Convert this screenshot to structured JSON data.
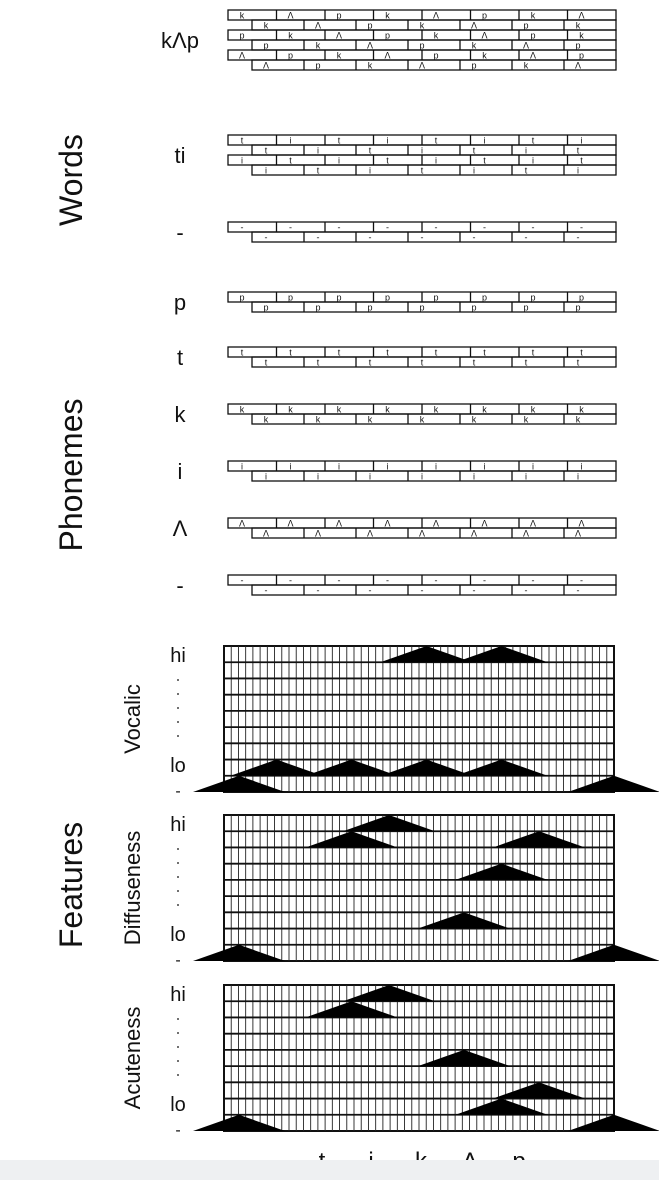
{
  "sections": {
    "words": "Words",
    "phonemes": "Phonemes",
    "features": "Features"
  },
  "words": [
    {
      "label": "kΛp",
      "rows": [
        [
          "k",
          "Λ",
          "p",
          "k",
          "Λ",
          "p",
          "k",
          "Λ"
        ],
        [
          "k",
          "Λ",
          "p",
          "k",
          "Λ",
          "p",
          "k"
        ],
        [
          "p",
          "k",
          "Λ",
          "p",
          "k",
          "Λ",
          "p",
          "k"
        ],
        [
          "p",
          "k",
          "Λ",
          "p",
          "k",
          "Λ",
          "p"
        ],
        [
          "Λ",
          "p",
          "k",
          "Λ",
          "p",
          "k",
          "Λ",
          "p"
        ],
        [
          "Λ",
          "p",
          "k",
          "Λ",
          "p",
          "k",
          "Λ"
        ]
      ]
    },
    {
      "label": "ti",
      "rows": [
        [
          "t",
          "i",
          "t",
          "i",
          "t",
          "i",
          "t",
          "i"
        ],
        [
          "t",
          "i",
          "t",
          "i",
          "t",
          "i",
          "t"
        ],
        [
          "i",
          "t",
          "i",
          "t",
          "i",
          "t",
          "i",
          "t"
        ],
        [
          "i",
          "t",
          "i",
          "t",
          "i",
          "t",
          "i"
        ]
      ]
    },
    {
      "label": "-",
      "rows": [
        [
          "-",
          "-",
          "-",
          "-",
          "-",
          "-",
          "-",
          "-"
        ],
        [
          "-",
          "-",
          "-",
          "-",
          "-",
          "-",
          "-"
        ]
      ]
    }
  ],
  "phonemes": [
    {
      "label": "p",
      "rows": [
        [
          "p",
          "p",
          "p",
          "p",
          "p",
          "p",
          "p",
          "p"
        ],
        [
          "p",
          "p",
          "p",
          "p",
          "p",
          "p",
          "p"
        ]
      ]
    },
    {
      "label": "t",
      "rows": [
        [
          "t",
          "t",
          "t",
          "t",
          "t",
          "t",
          "t",
          "t"
        ],
        [
          "t",
          "t",
          "t",
          "t",
          "t",
          "t",
          "t"
        ]
      ]
    },
    {
      "label": "k",
      "rows": [
        [
          "k",
          "k",
          "k",
          "k",
          "k",
          "k",
          "k",
          "k"
        ],
        [
          "k",
          "k",
          "k",
          "k",
          "k",
          "k",
          "k"
        ]
      ]
    },
    {
      "label": "i",
      "rows": [
        [
          "i",
          "i",
          "i",
          "i",
          "i",
          "i",
          "i",
          "i"
        ],
        [
          "i",
          "i",
          "i",
          "i",
          "i",
          "i",
          "i"
        ]
      ]
    },
    {
      "label": "Λ",
      "rows": [
        [
          "Λ",
          "Λ",
          "Λ",
          "Λ",
          "Λ",
          "Λ",
          "Λ",
          "Λ"
        ],
        [
          "Λ",
          "Λ",
          "Λ",
          "Λ",
          "Λ",
          "Λ",
          "Λ"
        ]
      ]
    },
    {
      "label": "-",
      "rows": [
        [
          "-",
          "-",
          "-",
          "-",
          "-",
          "-",
          "-",
          "-"
        ],
        [
          "-",
          "-",
          "-",
          "-",
          "-",
          "-",
          "-"
        ]
      ]
    }
  ],
  "features": [
    {
      "name": "Vocalic",
      "hi": "hi",
      "lo": "lo",
      "dash": "-",
      "peaks": [
        {
          "level": 8,
          "segment": 2.5
        },
        {
          "level": 8,
          "segment": 3.5
        },
        {
          "level": 1,
          "segment": 0.5
        },
        {
          "level": 1,
          "segment": 1.5
        },
        {
          "level": 1,
          "segment": 2.5
        },
        {
          "level": 1,
          "segment": 3.5
        },
        {
          "level": 0,
          "segment": 0
        },
        {
          "level": 0,
          "segment": 5
        }
      ]
    },
    {
      "name": "Diffuseness",
      "hi": "hi",
      "lo": "lo",
      "dash": "-",
      "peaks": [
        {
          "level": 8,
          "segment": 2
        },
        {
          "level": 7,
          "segment": 1.5
        },
        {
          "level": 7,
          "segment": 4
        },
        {
          "level": 5,
          "segment": 3.5
        },
        {
          "level": 2,
          "segment": 3
        },
        {
          "level": 0,
          "segment": 0
        },
        {
          "level": 0,
          "segment": 5
        }
      ]
    },
    {
      "name": "Acuteness",
      "hi": "hi",
      "lo": "lo",
      "dash": "-",
      "peaks": [
        {
          "level": 8,
          "segment": 2
        },
        {
          "level": 7,
          "segment": 1.5
        },
        {
          "level": 4,
          "segment": 3
        },
        {
          "level": 2,
          "segment": 4
        },
        {
          "level": 1,
          "segment": 3.5
        },
        {
          "level": 0,
          "segment": 0
        },
        {
          "level": 0,
          "segment": 5
        }
      ]
    }
  ],
  "x_axis": [
    "-",
    "t",
    "i",
    "k",
    "Λ",
    "p",
    "-"
  ]
}
